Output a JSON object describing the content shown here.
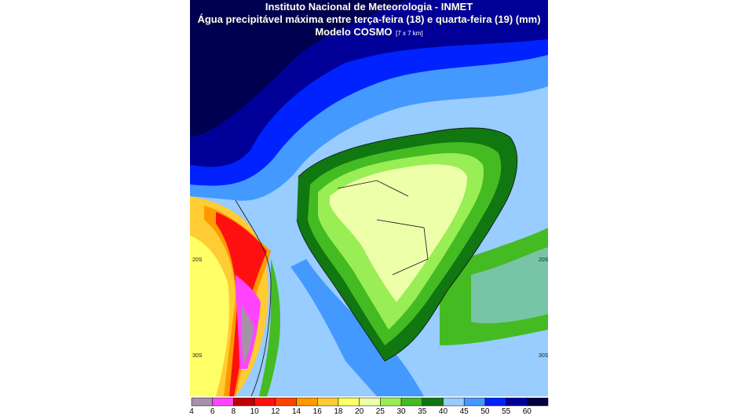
{
  "header": {
    "line1": "Instituto Nacional de Meteorologia - INMET",
    "line2": "Água precipitável máxima entre terça-feira (18) e quarta-feira (19) (mm)",
    "line3": "Modelo COSMO",
    "resolution": "[7 x 7 km]"
  },
  "lat_labels": [
    "20S",
    "30S"
  ],
  "legend": {
    "ticks": [
      4,
      6,
      8,
      10,
      12,
      14,
      16,
      18,
      20,
      25,
      30,
      35,
      40,
      45,
      50,
      55,
      60
    ],
    "colors": [
      "#a890a8",
      "#ff44ff",
      "#c00000",
      "#ff1010",
      "#ff4400",
      "#ff9900",
      "#ffcc33",
      "#ffff66",
      "#eeffaa",
      "#99ee55",
      "#44bb22",
      "#117711",
      "#99ccff",
      "#4499ff",
      "#0022ff",
      "#000099",
      "#000044"
    ]
  }
}
